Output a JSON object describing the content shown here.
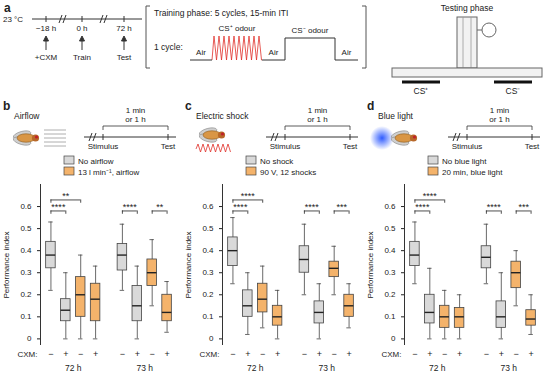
{
  "diagram": {
    "label": "a",
    "temperature": "23 °C",
    "timeline": [
      {
        "time": "−18 h",
        "event": "+CXM"
      },
      {
        "time": "0 h",
        "event": "Train"
      },
      {
        "time": "72 h",
        "event": "Test"
      }
    ],
    "training": {
      "title": "Training phase: 5 cycles, 15-min ITI",
      "cycle_label": "1 cycle:",
      "steps": [
        "Air",
        "CS⁺ odour",
        "Air",
        "CS⁻ odour",
        "Air"
      ]
    },
    "testing": {
      "title": "Testing phase",
      "arms": [
        "CS⁺",
        "CS⁻"
      ]
    }
  },
  "chart_data": [
    {
      "type": "box",
      "panel": "b",
      "stimulus": "Airflow",
      "timeline": {
        "start": "Stimulus",
        "end": "Test",
        "interval": [
          "1 min",
          "or 1 h"
        ]
      },
      "ylabel": "Performance index",
      "ylim": [
        -0.03,
        0.7
      ],
      "yticks": [
        0,
        0.1,
        0.2,
        0.3,
        0.4,
        0.5,
        0.6
      ],
      "x_label": "CXM:",
      "groups": [
        "72 h",
        "73 h"
      ],
      "cxm": [
        "−",
        "+"
      ],
      "series": [
        {
          "name": "No airflow",
          "color": "#d9d9d9",
          "values": [
            {
              "min": 0.22,
              "q1": 0.32,
              "median": 0.38,
              "q3": 0.44,
              "max": 0.53
            },
            {
              "min": 0,
              "q1": 0.08,
              "median": 0.13,
              "q3": 0.18,
              "max": 0.3
            },
            {
              "min": 0.22,
              "q1": 0.31,
              "median": 0.38,
              "q3": 0.43,
              "max": 0.52
            },
            {
              "min": 0,
              "q1": 0.08,
              "median": 0.15,
              "q3": 0.24,
              "max": 0.33
            }
          ]
        },
        {
          "name": "13 l min⁻¹, airflow",
          "color": "#f4b36b",
          "values": [
            {
              "min": 0,
              "q1": 0.1,
              "median": 0.2,
              "q3": 0.28,
              "max": 0.38
            },
            {
              "min": 0,
              "q1": 0.08,
              "median": 0.18,
              "q3": 0.25,
              "max": 0.33
            },
            {
              "min": 0.15,
              "q1": 0.24,
              "median": 0.3,
              "q3": 0.36,
              "max": 0.45
            },
            {
              "min": 0.03,
              "q1": 0.08,
              "median": 0.12,
              "q3": 0.2,
              "max": 0.26
            }
          ]
        }
      ],
      "significance": [
        {
          "group": "72 h",
          "boxes": [
            0,
            1
          ],
          "label": "****"
        },
        {
          "group": "72 h",
          "boxes": [
            0,
            2
          ],
          "label": "**"
        },
        {
          "group": "73 h",
          "boxes": [
            0,
            1
          ],
          "label": "****"
        },
        {
          "group": "73 h",
          "boxes": [
            2,
            3
          ],
          "label": "**"
        }
      ]
    },
    {
      "type": "box",
      "panel": "c",
      "stimulus": "Electric shock",
      "timeline": {
        "start": "Stimulus",
        "end": "Test",
        "interval": [
          "1 min",
          "or 1 h"
        ]
      },
      "ylabel": "Performance index",
      "ylim": [
        -0.03,
        0.7
      ],
      "yticks": [
        0,
        0.1,
        0.2,
        0.3,
        0.4,
        0.5,
        0.6
      ],
      "x_label": "CXM:",
      "groups": [
        "72 h",
        "73 h"
      ],
      "cxm": [
        "−",
        "+"
      ],
      "series": [
        {
          "name": "No shock",
          "color": "#d9d9d9",
          "values": [
            {
              "min": 0.25,
              "q1": 0.33,
              "median": 0.4,
              "q3": 0.46,
              "max": 0.55
            },
            {
              "min": 0.02,
              "q1": 0.1,
              "median": 0.15,
              "q3": 0.22,
              "max": 0.3
            },
            {
              "min": 0.2,
              "q1": 0.3,
              "median": 0.36,
              "q3": 0.42,
              "max": 0.52
            },
            {
              "min": 0,
              "q1": 0.07,
              "median": 0.12,
              "q3": 0.17,
              "max": 0.25
            }
          ]
        },
        {
          "name": "90 V, 12 shocks",
          "color": "#f4b36b",
          "values": [
            {
              "min": 0.05,
              "q1": 0.12,
              "median": 0.18,
              "q3": 0.25,
              "max": 0.33
            },
            {
              "min": 0,
              "q1": 0.06,
              "median": 0.1,
              "q3": 0.15,
              "max": 0.22
            },
            {
              "min": 0.2,
              "q1": 0.28,
              "median": 0.32,
              "q3": 0.35,
              "max": 0.42
            },
            {
              "min": 0.05,
              "q1": 0.1,
              "median": 0.15,
              "q3": 0.2,
              "max": 0.25
            }
          ]
        }
      ],
      "significance": [
        {
          "group": "72 h",
          "boxes": [
            0,
            1
          ],
          "label": "****"
        },
        {
          "group": "72 h",
          "boxes": [
            0,
            2
          ],
          "label": "****"
        },
        {
          "group": "73 h",
          "boxes": [
            0,
            1
          ],
          "label": "****"
        },
        {
          "group": "73 h",
          "boxes": [
            2,
            3
          ],
          "label": "***"
        }
      ]
    },
    {
      "type": "box",
      "panel": "d",
      "stimulus": "Blue light",
      "timeline": {
        "start": "Stimulus",
        "end": "Test",
        "interval": [
          "1 min",
          "or 1 h"
        ]
      },
      "ylabel": "Performance index",
      "ylim": [
        -0.03,
        0.7
      ],
      "yticks": [
        0,
        0.1,
        0.2,
        0.3,
        0.4,
        0.5,
        0.6
      ],
      "x_label": "CXM:",
      "groups": [
        "72 h",
        "73 h"
      ],
      "cxm": [
        "−",
        "+"
      ],
      "series": [
        {
          "name": "No blue light",
          "color": "#d9d9d9",
          "values": [
            {
              "min": 0.25,
              "q1": 0.33,
              "median": 0.38,
              "q3": 0.44,
              "max": 0.53
            },
            {
              "min": 0,
              "q1": 0.07,
              "median": 0.12,
              "q3": 0.2,
              "max": 0.32
            },
            {
              "min": 0.25,
              "q1": 0.32,
              "median": 0.37,
              "q3": 0.42,
              "max": 0.52
            },
            {
              "min": 0,
              "q1": 0.05,
              "median": 0.1,
              "q3": 0.17,
              "max": 0.3
            }
          ]
        },
        {
          "name": "20 min, blue light",
          "color": "#f4b36b",
          "values": [
            {
              "min": 0,
              "q1": 0.05,
              "median": 0.1,
              "q3": 0.15,
              "max": 0.22
            },
            {
              "min": 0,
              "q1": 0.05,
              "median": 0.1,
              "q3": 0.14,
              "max": 0.2
            },
            {
              "min": 0.15,
              "q1": 0.23,
              "median": 0.3,
              "q3": 0.35,
              "max": 0.4
            },
            {
              "min": 0.02,
              "q1": 0.06,
              "median": 0.09,
              "q3": 0.13,
              "max": 0.2
            }
          ]
        }
      ],
      "significance": [
        {
          "group": "72 h",
          "boxes": [
            0,
            1
          ],
          "label": "****"
        },
        {
          "group": "72 h",
          "boxes": [
            0,
            2
          ],
          "label": "****"
        },
        {
          "group": "73 h",
          "boxes": [
            0,
            1
          ],
          "label": "****"
        },
        {
          "group": "73 h",
          "boxes": [
            2,
            3
          ],
          "label": "***"
        }
      ]
    }
  ]
}
